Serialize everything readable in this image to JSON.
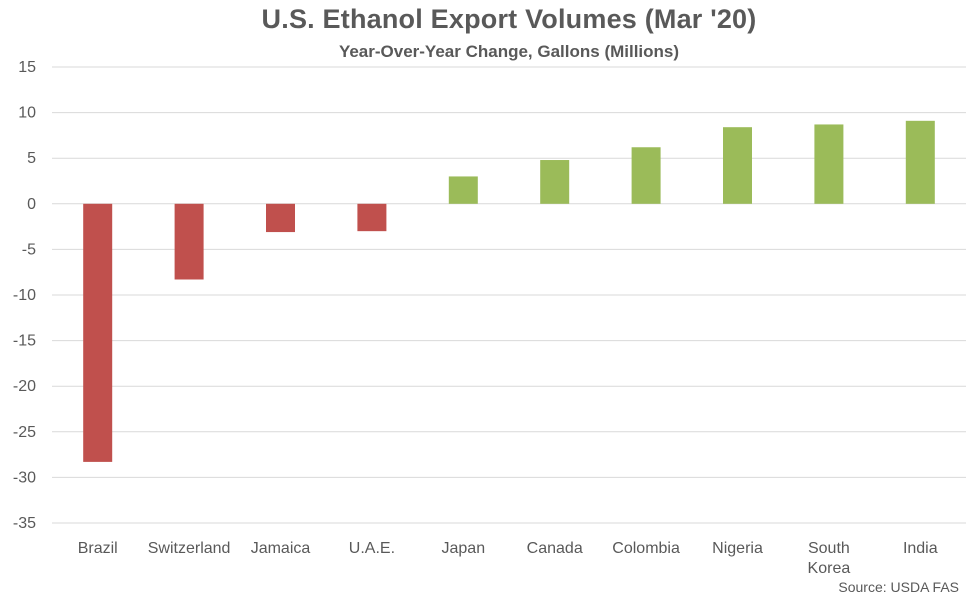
{
  "chart_data": {
    "type": "bar",
    "title": "U.S. Ethanol Export Volumes (Mar '20)",
    "subtitle": "Year-Over-Year Change, Gallons (Millions)",
    "source": "Source: USDA FAS",
    "categories": [
      "Brazil",
      "Switzerland",
      "Jamaica",
      "U.A.E.",
      "Japan",
      "Canada",
      "Colombia",
      "Nigeria",
      "South\nKorea",
      "India"
    ],
    "values": [
      -28.3,
      -8.3,
      -3.1,
      -3.0,
      3.0,
      4.8,
      6.2,
      8.4,
      8.7,
      9.1
    ],
    "ylim": [
      -35,
      15
    ],
    "yticks": [
      15,
      10,
      5,
      0,
      -5,
      -10,
      -15,
      -20,
      -25,
      -30,
      -35
    ],
    "ytick_labels": [
      "15",
      "10",
      "5",
      "0",
      "-5",
      "-10",
      "-15",
      "-20",
      "-25",
      "-30",
      "-35"
    ],
    "grid": true,
    "colors": {
      "negative": "#C0504D",
      "positive": "#9BBB59",
      "grid": "#D9D9D9",
      "text": "#595959"
    }
  }
}
